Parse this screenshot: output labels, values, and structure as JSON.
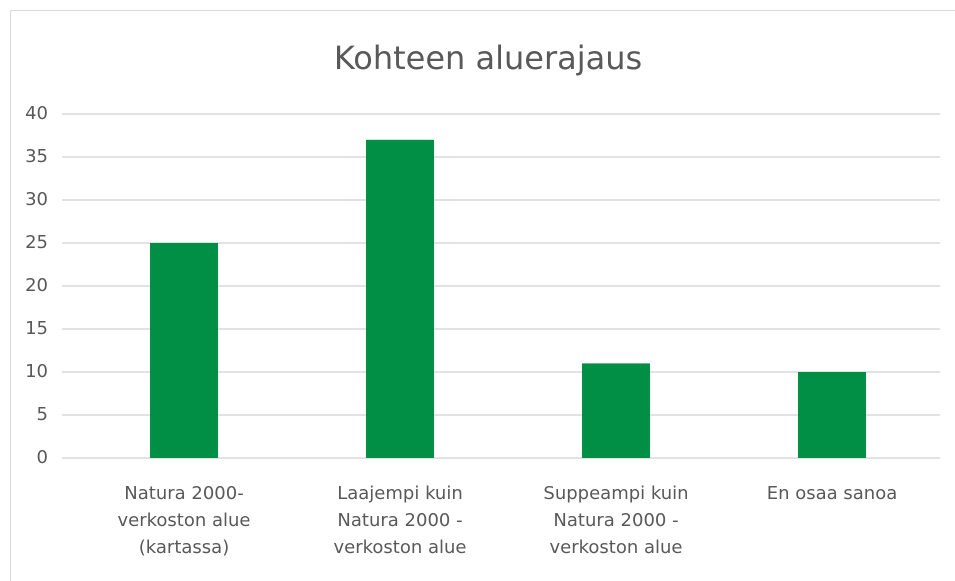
{
  "chart_data": {
    "type": "bar",
    "title": "Kohteen aluerajaus",
    "categories": [
      "Natura 2000-verkoston alue (kartassa)",
      "Laajempi kuin Natura 2000 -verkoston alue",
      "Suppeampi kuin Natura 2000 -verkoston alue",
      "En osaa sanoa"
    ],
    "values": [
      25,
      37,
      11,
      10
    ],
    "color": "#008f45",
    "ylim": [
      0,
      40
    ],
    "yticks": [
      0,
      5,
      10,
      15,
      20,
      25,
      30,
      35,
      40
    ],
    "grid": true
  }
}
